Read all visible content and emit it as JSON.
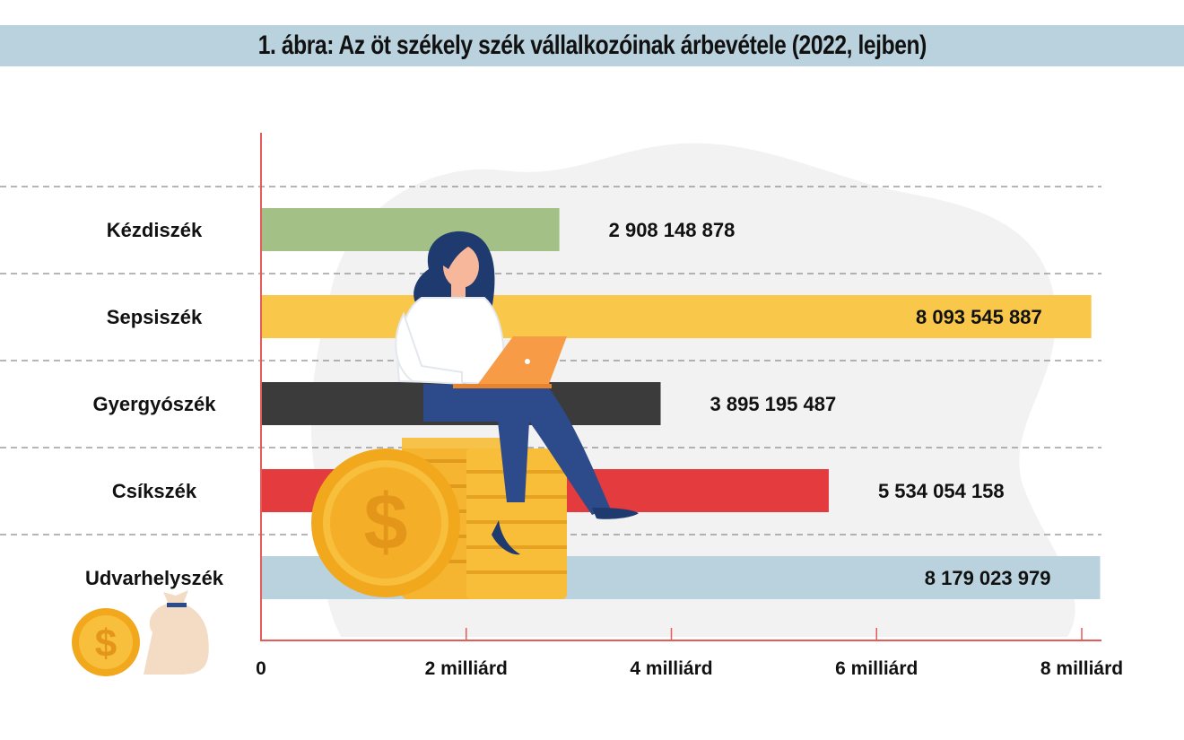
{
  "title": "1. ábra: Az öt székely szék vállalkozóinak árbevétele (2022, lejben)",
  "chart_data": {
    "type": "bar",
    "orientation": "horizontal",
    "title": "1. ábra: Az öt székely szék vállalkozóinak árbevétele (2022, lejben)",
    "xlabel": "",
    "ylabel": "",
    "xlim": [
      0,
      8000000000
    ],
    "grid": "dashed horizontal separators between categories",
    "categories": [
      "Kézdiszék",
      "Sepsiszék",
      "Gyergyószék",
      "Csíkszék",
      "Udvarhelyszék"
    ],
    "values": [
      2908148878,
      8093545887,
      3895195487,
      5534054158,
      8179023979
    ],
    "value_labels": [
      "2 908 148 878",
      "8 093 545 887",
      "3 895 195 487",
      "5 534 054 158",
      "8 179 023 979"
    ],
    "colors": [
      "#a3c186",
      "#f9c84b",
      "#3b3b3b",
      "#e43b3f",
      "#b9d2de"
    ],
    "label_inside": [
      false,
      true,
      false,
      false,
      true
    ],
    "x_ticks": [
      0,
      2000000000,
      4000000000,
      6000000000,
      8000000000
    ],
    "x_tick_labels": [
      "0",
      "2 milliárd",
      "4 milliárd",
      "6 milliárd",
      "8 milliárd"
    ]
  },
  "illustration": {
    "figure": "woman-with-laptop-on-coins-illustration",
    "decoration": "coin-and-money-bag-icon",
    "currency_symbol": "$"
  }
}
